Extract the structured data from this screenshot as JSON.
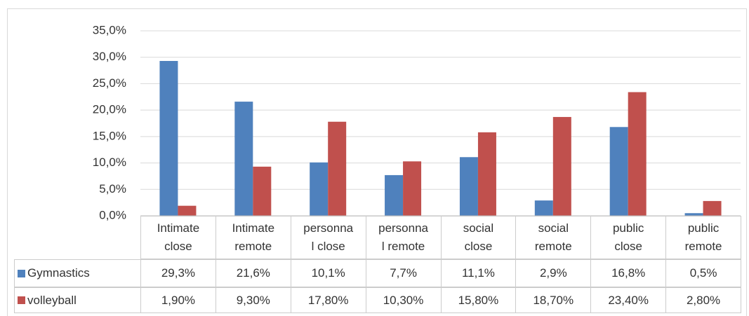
{
  "chart_data": {
    "type": "bar",
    "categories": [
      "Intimate\nclose",
      "Intimate\nremote",
      "personna\nl close",
      "personna\nl remote",
      "social\nclose",
      "social\nremote",
      "public\nclose",
      "public\nremote"
    ],
    "series": [
      {
        "name": "Gymnastics",
        "color": "#4f81bd",
        "values": [
          29.3,
          21.6,
          10.1,
          7.7,
          11.1,
          2.9,
          16.8,
          0.5
        ],
        "value_labels": [
          "29,3%",
          "21,6%",
          "10,1%",
          "7,7%",
          "11,1%",
          "2,9%",
          "16,8%",
          "0,5%"
        ]
      },
      {
        "name": "volleyball",
        "color": "#c0504d",
        "values": [
          1.9,
          9.3,
          17.8,
          10.3,
          15.8,
          18.7,
          23.4,
          2.8
        ],
        "value_labels": [
          "1,90%",
          "9,30%",
          "17,80%",
          "10,30%",
          "15,80%",
          "18,70%",
          "23,40%",
          "2,80%"
        ]
      }
    ],
    "ylim": [
      0,
      35
    ],
    "yticks": [
      {
        "value": 0,
        "label": "0,0%"
      },
      {
        "value": 5,
        "label": "5,0%"
      },
      {
        "value": 10,
        "label": "10,0%"
      },
      {
        "value": 15,
        "label": "15,0%"
      },
      {
        "value": 20,
        "label": "20,0%"
      },
      {
        "value": 25,
        "label": "25,0%"
      },
      {
        "value": 30,
        "label": "30,0%"
      },
      {
        "value": 35,
        "label": "35,0%"
      }
    ],
    "grid": true
  }
}
